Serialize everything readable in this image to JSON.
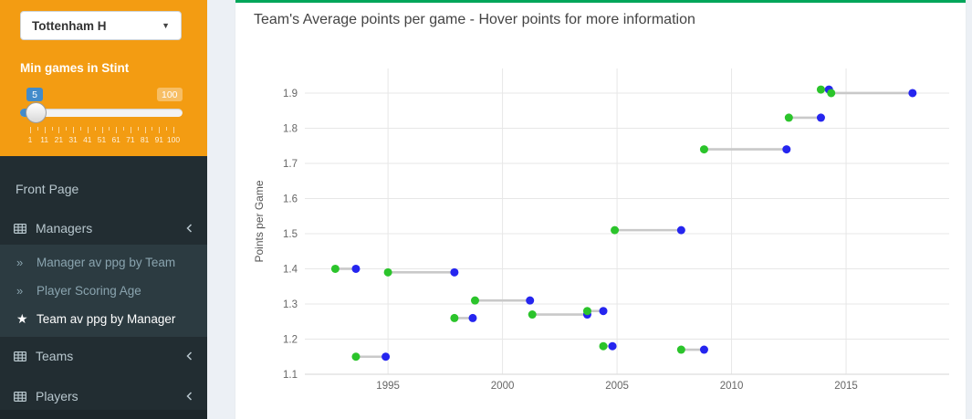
{
  "colors": {
    "sidebar_bg": "#222d32",
    "submenu_bg": "#2c3b41",
    "filter_panel_orange": "#f39c12",
    "panel_accent_green": "#00a65a",
    "slider_badge_blue": "#428bca",
    "point_start_green": "#2bc42b",
    "point_end_blue": "#2525ef",
    "connector_gray": "#c9c9c9"
  },
  "sidebar": {
    "team_selector": {
      "value": "Tottenham H"
    },
    "slider": {
      "label": "Min games in Stint",
      "value": "5",
      "max": "100",
      "tick_labels": [
        "1",
        "11",
        "21",
        "31",
        "41",
        "51",
        "61",
        "71",
        "81",
        "91",
        "100"
      ]
    },
    "menu": {
      "items": [
        {
          "label": "Front Page"
        },
        {
          "label": "Managers"
        },
        {
          "label": "Teams"
        },
        {
          "label": "Players"
        }
      ],
      "managers_children": [
        {
          "label": "Manager av ppg by Team",
          "active": false
        },
        {
          "label": "Player Scoring Age",
          "active": false
        },
        {
          "label": "Team av ppg by Manager",
          "active": true
        }
      ]
    }
  },
  "main": {
    "title": "Team's Average points per game - Hover points for more information"
  },
  "chart_data": {
    "type": "scatter",
    "subtype": "dumbbell",
    "title": "Team's Average points per game - Hover points for more information",
    "xlabel": "",
    "ylabel": "Points per Game",
    "xlim": [
      1991.37,
      2019.5
    ],
    "ylim": [
      1.1,
      1.97
    ],
    "x_ticks": [
      1995,
      2000,
      2005,
      2010,
      2015
    ],
    "y_ticks": [
      1.1,
      1.2,
      1.3,
      1.4,
      1.5,
      1.6,
      1.7,
      1.8,
      1.9
    ],
    "grid": true,
    "legend": "none",
    "colors": {
      "start": "#2bc42b",
      "end": "#2525ef",
      "connector": "#c9c9c9"
    },
    "stints": [
      {
        "start_year": 1992.7,
        "end_year": 1993.6,
        "ppg": 1.4
      },
      {
        "start_year": 1993.6,
        "end_year": 1994.9,
        "ppg": 1.15
      },
      {
        "start_year": 1995.0,
        "end_year": 1997.9,
        "ppg": 1.39
      },
      {
        "start_year": 1997.9,
        "end_year": 1998.7,
        "ppg": 1.26
      },
      {
        "start_year": 1998.8,
        "end_year": 2001.2,
        "ppg": 1.31
      },
      {
        "start_year": 2001.3,
        "end_year": 2003.7,
        "ppg": 1.27
      },
      {
        "start_year": 2003.7,
        "end_year": 2004.4,
        "ppg": 1.28
      },
      {
        "start_year": 2004.4,
        "end_year": 2004.8,
        "ppg": 1.18
      },
      {
        "start_year": 2004.9,
        "end_year": 2007.8,
        "ppg": 1.51
      },
      {
        "start_year": 2007.8,
        "end_year": 2008.8,
        "ppg": 1.17
      },
      {
        "start_year": 2008.8,
        "end_year": 2012.4,
        "ppg": 1.74
      },
      {
        "start_year": 2012.5,
        "end_year": 2013.9,
        "ppg": 1.83
      },
      {
        "start_year": 2013.9,
        "end_year": 2014.25,
        "ppg": 1.91
      },
      {
        "start_year": 2014.35,
        "end_year": 2017.9,
        "ppg": 1.9
      }
    ]
  }
}
